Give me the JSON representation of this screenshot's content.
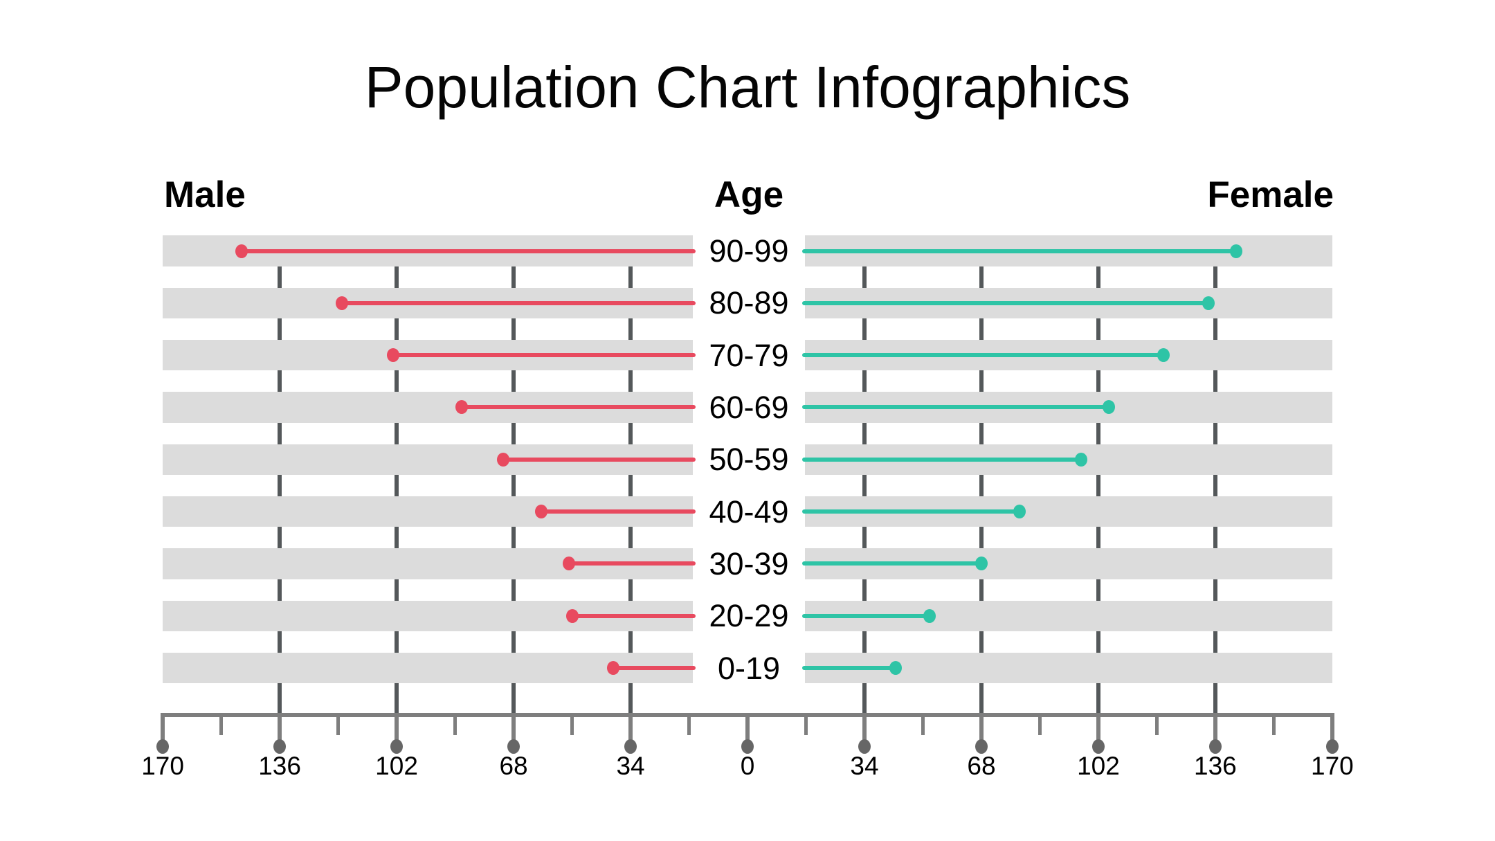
{
  "title": "Population Chart Infographics",
  "headers": {
    "male": "Male",
    "center": "Age",
    "female": "Female"
  },
  "colors": {
    "male_accent": "#E84A5F",
    "female_accent": "#2EC4A6",
    "row_band": "#DCDCDC",
    "grid_dash": "#54585A",
    "axis": "#7E7E7E",
    "tick_dot": "#666666",
    "text": "#000000"
  },
  "chart_data": {
    "type": "bar",
    "subtype": "diverging-lollipop-population-pyramid",
    "title": "Population Chart Infographics",
    "categories": [
      "90-99",
      "80-89",
      "70-79",
      "60-69",
      "50-59",
      "40-49",
      "30-39",
      "20-29",
      "0-19"
    ],
    "series": [
      {
        "name": "Male",
        "side": "left",
        "color": "#E84A5F",
        "values": [
          147,
          118,
          103,
          83,
          71,
          60,
          52,
          51,
          39
        ]
      },
      {
        "name": "Female",
        "side": "right",
        "color": "#2EC4A6",
        "values": [
          142,
          134,
          121,
          105,
          97,
          79,
          68,
          53,
          43
        ]
      }
    ],
    "axis": {
      "tick_labels": [
        170,
        136,
        102,
        68,
        34,
        0,
        34,
        68,
        102,
        136,
        170
      ],
      "major_step": 34,
      "minor_step": 17,
      "max_each_side": 170
    },
    "grid": "dashed vertical segments between row bands at major ticks (136, 102, 68, 34 on both sides)",
    "legend_position": "none"
  }
}
